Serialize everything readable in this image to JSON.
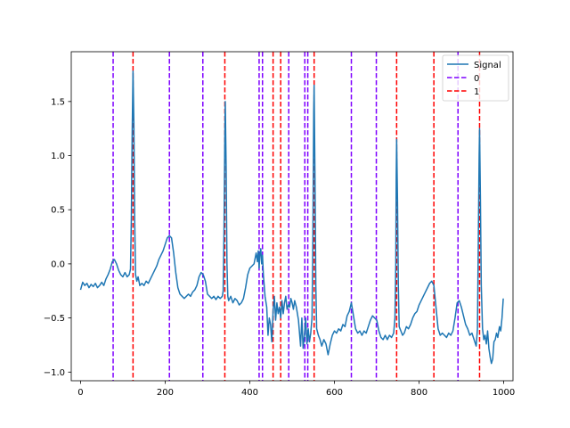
{
  "chart_data": {
    "type": "line",
    "title": "",
    "xlabel": "",
    "ylabel": "",
    "xlim": [
      -22,
      1022
    ],
    "ylim": [
      -1.08,
      1.96
    ],
    "x_ticks": [
      0,
      200,
      400,
      600,
      800,
      1000
    ],
    "y_ticks": [
      -1.0,
      -0.5,
      0.0,
      0.5,
      1.0,
      1.5
    ],
    "x_tick_labels": [
      "0",
      "200",
      "400",
      "600",
      "800",
      "1000"
    ],
    "y_tick_labels": [
      "−1.0",
      "−0.5",
      "0.0",
      "0.5",
      "1.0",
      "1.5"
    ],
    "grid": false,
    "legend_position": "upper right",
    "series": [
      {
        "name": "Signal",
        "color": "#1f77b4",
        "points": [
          [
            0,
            -0.24
          ],
          [
            5,
            -0.17
          ],
          [
            10,
            -0.2
          ],
          [
            15,
            -0.18
          ],
          [
            20,
            -0.22
          ],
          [
            25,
            -0.19
          ],
          [
            30,
            -0.21
          ],
          [
            35,
            -0.18
          ],
          [
            40,
            -0.22
          ],
          [
            45,
            -0.2
          ],
          [
            50,
            -0.17
          ],
          [
            55,
            -0.2
          ],
          [
            60,
            -0.14
          ],
          [
            65,
            -0.1
          ],
          [
            70,
            -0.05
          ],
          [
            75,
            0.02
          ],
          [
            80,
            0.04
          ],
          [
            85,
            0.0
          ],
          [
            90,
            -0.06
          ],
          [
            95,
            -0.1
          ],
          [
            100,
            -0.12
          ],
          [
            105,
            -0.08
          ],
          [
            110,
            -0.12
          ],
          [
            115,
            -0.1
          ],
          [
            118,
            -0.05
          ],
          [
            120,
            0.4
          ],
          [
            122,
            1.2
          ],
          [
            124,
            1.78
          ],
          [
            126,
            1.3
          ],
          [
            128,
            0.4
          ],
          [
            130,
            -0.1
          ],
          [
            133,
            -0.16
          ],
          [
            136,
            -0.12
          ],
          [
            140,
            -0.2
          ],
          [
            145,
            -0.18
          ],
          [
            150,
            -0.2
          ],
          [
            155,
            -0.16
          ],
          [
            160,
            -0.18
          ],
          [
            165,
            -0.14
          ],
          [
            170,
            -0.1
          ],
          [
            175,
            -0.06
          ],
          [
            180,
            -0.02
          ],
          [
            185,
            0.04
          ],
          [
            190,
            0.08
          ],
          [
            195,
            0.12
          ],
          [
            200,
            0.18
          ],
          [
            205,
            0.24
          ],
          [
            210,
            0.26
          ],
          [
            215,
            0.24
          ],
          [
            220,
            0.1
          ],
          [
            225,
            -0.08
          ],
          [
            230,
            -0.22
          ],
          [
            235,
            -0.28
          ],
          [
            240,
            -0.3
          ],
          [
            245,
            -0.32
          ],
          [
            250,
            -0.3
          ],
          [
            255,
            -0.28
          ],
          [
            260,
            -0.3
          ],
          [
            265,
            -0.26
          ],
          [
            270,
            -0.24
          ],
          [
            275,
            -0.2
          ],
          [
            280,
            -0.12
          ],
          [
            285,
            -0.08
          ],
          [
            290,
            -0.1
          ],
          [
            295,
            -0.16
          ],
          [
            300,
            -0.28
          ],
          [
            305,
            -0.3
          ],
          [
            310,
            -0.32
          ],
          [
            315,
            -0.3
          ],
          [
            320,
            -0.33
          ],
          [
            325,
            -0.3
          ],
          [
            330,
            -0.32
          ],
          [
            335,
            -0.3
          ],
          [
            337,
            -0.25
          ],
          [
            339,
            0.3
          ],
          [
            341,
            1.2
          ],
          [
            342,
            1.5
          ],
          [
            344,
            0.9
          ],
          [
            346,
            0.0
          ],
          [
            348,
            -0.3
          ],
          [
            350,
            -0.34
          ],
          [
            355,
            -0.3
          ],
          [
            360,
            -0.36
          ],
          [
            365,
            -0.32
          ],
          [
            370,
            -0.34
          ],
          [
            375,
            -0.38
          ],
          [
            380,
            -0.36
          ],
          [
            385,
            -0.32
          ],
          [
            390,
            -0.22
          ],
          [
            395,
            -0.1
          ],
          [
            400,
            -0.04
          ],
          [
            405,
            -0.02
          ],
          [
            410,
            0.0
          ],
          [
            415,
            0.1
          ],
          [
            418,
            0.02
          ],
          [
            420,
            0.12
          ],
          [
            422,
            -0.04
          ],
          [
            424,
            0.1
          ],
          [
            426,
            0.14
          ],
          [
            428,
            0.0
          ],
          [
            430,
            0.08
          ],
          [
            432,
            -0.1
          ],
          [
            434,
            -0.2
          ],
          [
            436,
            -0.3
          ],
          [
            440,
            -0.4
          ],
          [
            443,
            -0.66
          ],
          [
            446,
            -0.5
          ],
          [
            449,
            -0.56
          ],
          [
            452,
            -0.72
          ],
          [
            455,
            -0.44
          ],
          [
            458,
            -0.3
          ],
          [
            461,
            -0.52
          ],
          [
            464,
            -0.36
          ],
          [
            467,
            -0.46
          ],
          [
            470,
            -0.4
          ],
          [
            473,
            -0.5
          ],
          [
            476,
            -0.34
          ],
          [
            479,
            -0.46
          ],
          [
            482,
            -0.36
          ],
          [
            485,
            -0.3
          ],
          [
            488,
            -0.42
          ],
          [
            491,
            -0.38
          ],
          [
            494,
            -0.4
          ],
          [
            497,
            -0.32
          ],
          [
            500,
            -0.36
          ],
          [
            503,
            -0.42
          ],
          [
            506,
            -0.34
          ],
          [
            510,
            -0.4
          ],
          [
            515,
            -0.52
          ],
          [
            520,
            -0.76
          ],
          [
            523,
            -0.5
          ],
          [
            526,
            -0.78
          ],
          [
            529,
            -0.66
          ],
          [
            532,
            -0.5
          ],
          [
            535,
            -0.74
          ],
          [
            538,
            -0.6
          ],
          [
            541,
            -0.72
          ],
          [
            544,
            -0.64
          ],
          [
            547,
            -0.5
          ],
          [
            549,
            0.2
          ],
          [
            551,
            1.4
          ],
          [
            552,
            1.65
          ],
          [
            554,
            0.8
          ],
          [
            556,
            -0.2
          ],
          [
            558,
            -0.6
          ],
          [
            562,
            -0.66
          ],
          [
            566,
            -0.7
          ],
          [
            570,
            -0.76
          ],
          [
            575,
            -0.7
          ],
          [
            580,
            -0.74
          ],
          [
            585,
            -0.84
          ],
          [
            590,
            -0.74
          ],
          [
            595,
            -0.66
          ],
          [
            600,
            -0.62
          ],
          [
            605,
            -0.64
          ],
          [
            610,
            -0.6
          ],
          [
            615,
            -0.62
          ],
          [
            620,
            -0.56
          ],
          [
            625,
            -0.58
          ],
          [
            630,
            -0.48
          ],
          [
            635,
            -0.44
          ],
          [
            640,
            -0.36
          ],
          [
            645,
            -0.48
          ],
          [
            650,
            -0.6
          ],
          [
            655,
            -0.64
          ],
          [
            660,
            -0.62
          ],
          [
            665,
            -0.66
          ],
          [
            670,
            -0.62
          ],
          [
            675,
            -0.64
          ],
          [
            680,
            -0.58
          ],
          [
            685,
            -0.52
          ],
          [
            690,
            -0.48
          ],
          [
            695,
            -0.5
          ],
          [
            700,
            -0.52
          ],
          [
            705,
            -0.62
          ],
          [
            710,
            -0.68
          ],
          [
            715,
            -0.7
          ],
          [
            720,
            -0.66
          ],
          [
            725,
            -0.7
          ],
          [
            730,
            -0.66
          ],
          [
            735,
            -0.68
          ],
          [
            740,
            -0.64
          ],
          [
            743,
            -0.5
          ],
          [
            745,
            0.0
          ],
          [
            746,
            0.8
          ],
          [
            747,
            1.15
          ],
          [
            749,
            0.6
          ],
          [
            751,
            -0.2
          ],
          [
            753,
            -0.58
          ],
          [
            757,
            -0.62
          ],
          [
            761,
            -0.66
          ],
          [
            765,
            -0.64
          ],
          [
            770,
            -0.58
          ],
          [
            775,
            -0.6
          ],
          [
            780,
            -0.56
          ],
          [
            785,
            -0.5
          ],
          [
            790,
            -0.46
          ],
          [
            795,
            -0.44
          ],
          [
            800,
            -0.38
          ],
          [
            805,
            -0.34
          ],
          [
            810,
            -0.3
          ],
          [
            815,
            -0.26
          ],
          [
            820,
            -0.22
          ],
          [
            825,
            -0.18
          ],
          [
            830,
            -0.16
          ],
          [
            835,
            -0.2
          ],
          [
            840,
            -0.4
          ],
          [
            845,
            -0.6
          ],
          [
            850,
            -0.66
          ],
          [
            855,
            -0.64
          ],
          [
            860,
            -0.66
          ],
          [
            865,
            -0.68
          ],
          [
            870,
            -0.64
          ],
          [
            875,
            -0.66
          ],
          [
            880,
            -0.62
          ],
          [
            885,
            -0.5
          ],
          [
            890,
            -0.36
          ],
          [
            895,
            -0.34
          ],
          [
            900,
            -0.4
          ],
          [
            905,
            -0.48
          ],
          [
            910,
            -0.56
          ],
          [
            915,
            -0.6
          ],
          [
            920,
            -0.66
          ],
          [
            925,
            -0.64
          ],
          [
            930,
            -0.7
          ],
          [
            935,
            -0.76
          ],
          [
            938,
            -0.6
          ],
          [
            940,
            0.2
          ],
          [
            942,
            1.0
          ],
          [
            943,
            1.25
          ],
          [
            945,
            0.6
          ],
          [
            947,
            -0.2
          ],
          [
            950,
            -0.6
          ],
          [
            953,
            -0.7
          ],
          [
            956,
            -0.66
          ],
          [
            959,
            -0.74
          ],
          [
            962,
            -0.62
          ],
          [
            965,
            -0.78
          ],
          [
            968,
            -0.86
          ],
          [
            971,
            -0.92
          ],
          [
            974,
            -0.88
          ],
          [
            977,
            -0.72
          ],
          [
            980,
            -0.7
          ],
          [
            983,
            -0.64
          ],
          [
            986,
            -0.68
          ],
          [
            990,
            -0.58
          ],
          [
            993,
            -0.62
          ],
          [
            996,
            -0.5
          ],
          [
            999,
            -0.32
          ]
        ]
      }
    ],
    "vlines": [
      {
        "name": "0",
        "color": "#7f00ff",
        "x": [
          77,
          210,
          289,
          422,
          430,
          492,
          530,
          537,
          640,
          699,
          892
        ]
      },
      {
        "name": "1",
        "color": "#ff0000",
        "x": [
          124,
          341,
          455,
          473,
          552,
          747,
          835,
          943
        ]
      }
    ]
  }
}
